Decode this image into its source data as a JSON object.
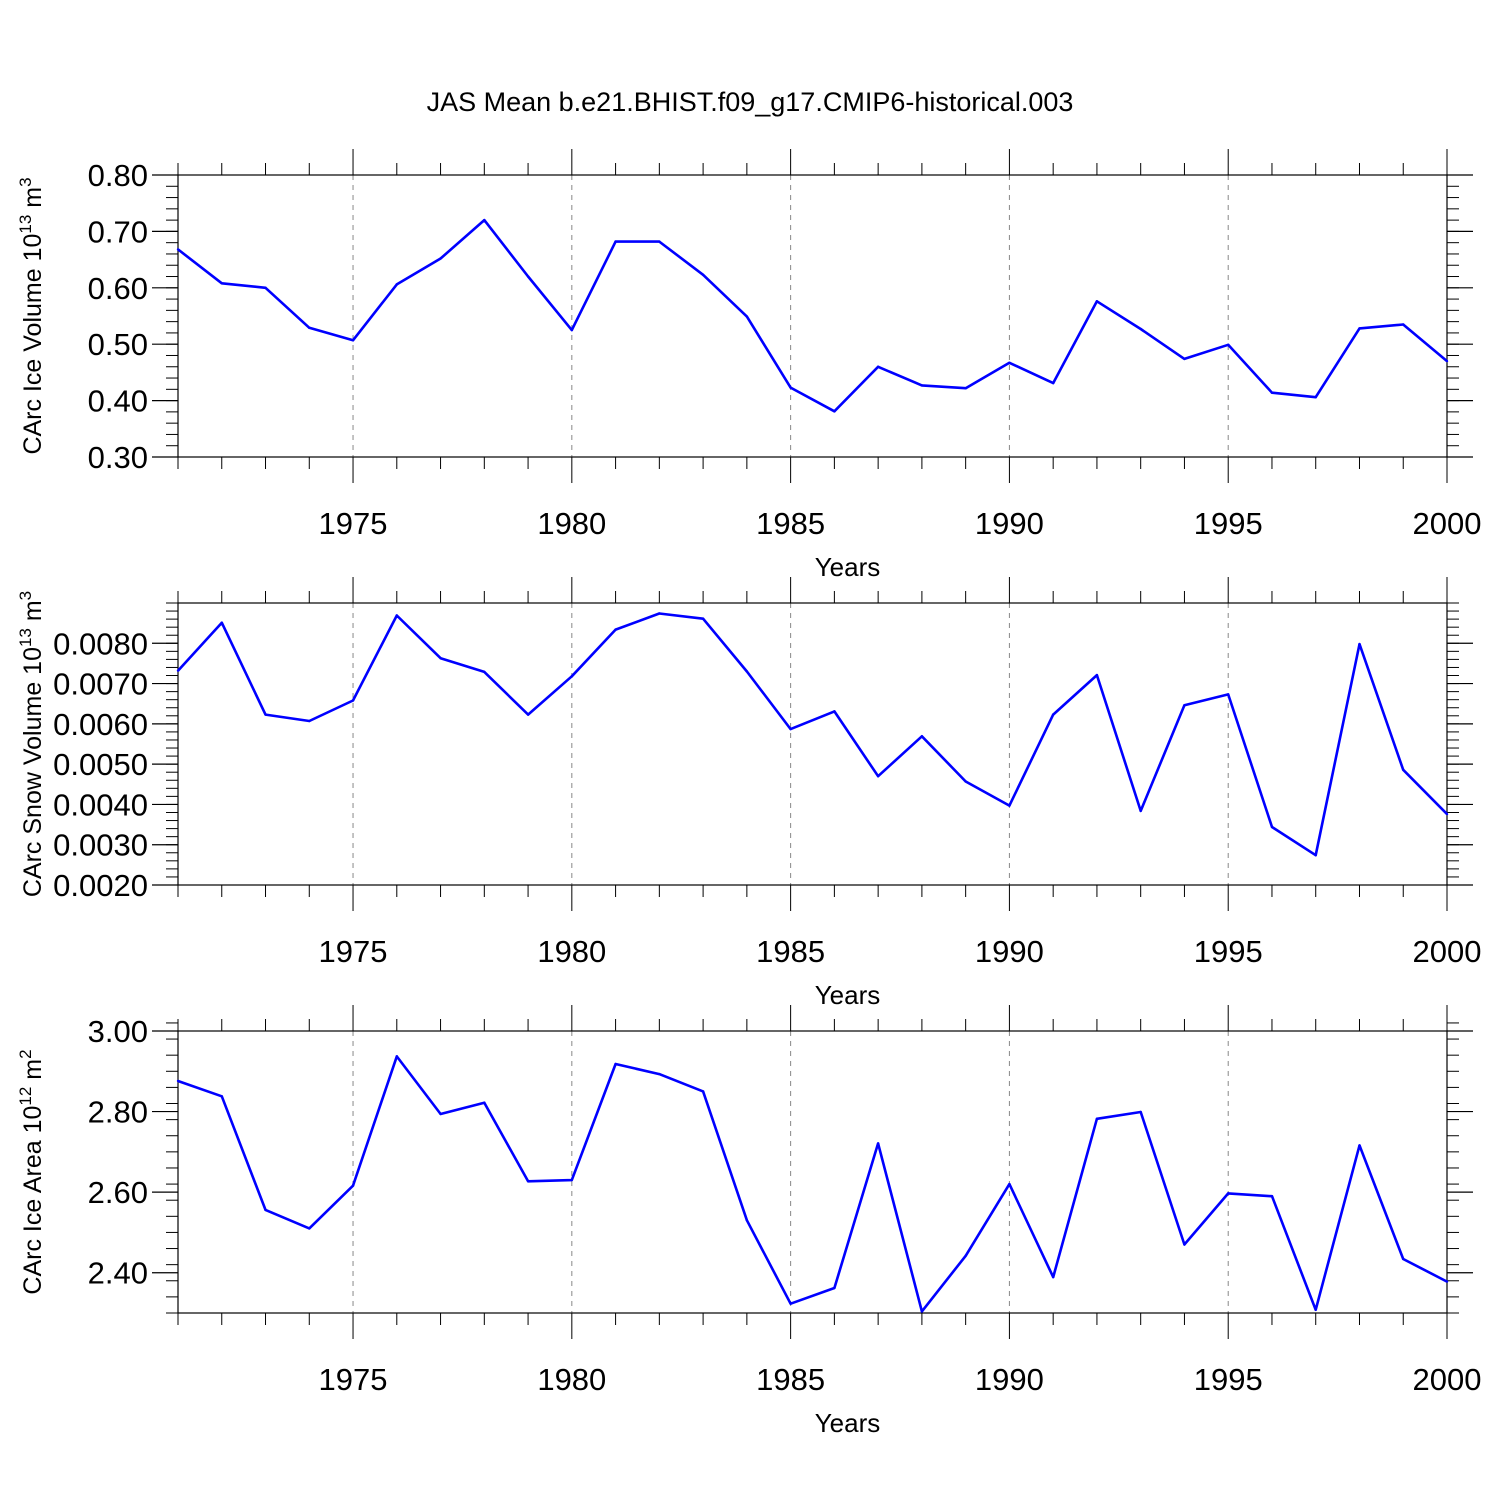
{
  "figure_title": "JAS Mean b.e21.BHIST.f09_g17.CMIP6-historical.003",
  "chart_data": [
    {
      "type": "line",
      "ylabel": "CArc Ice Volume 10",
      "ylabel_exp": "13",
      "ylabel_unit": " m",
      "ylabel_unit_exp": "3",
      "xlabel": "Years",
      "xlim": [
        1971,
        2000
      ],
      "ylim": [
        0.3,
        0.8
      ],
      "yticks": [
        0.3,
        0.4,
        0.5,
        0.6,
        0.7,
        0.8
      ],
      "ytick_labels": [
        "0.30",
        "0.40",
        "0.50",
        "0.60",
        "0.70",
        "0.80"
      ],
      "yminor_step": 0.02,
      "xticks": [
        1975,
        1980,
        1985,
        1990,
        1995,
        2000
      ],
      "xtick_labels": [
        "1975",
        "1980",
        "1985",
        "1990",
        "1995",
        "2000"
      ],
      "color": "#0000ff",
      "series": [
        {
          "name": "CArc Ice Volume",
          "x": [
            1971,
            1972,
            1973,
            1974,
            1975,
            1976,
            1977,
            1978,
            1979,
            1980,
            1981,
            1982,
            1983,
            1984,
            1985,
            1986,
            1987,
            1988,
            1989,
            1990,
            1991,
            1992,
            1993,
            1994,
            1995,
            1996,
            1997,
            1998,
            1999,
            2000
          ],
          "values": [
            0.668,
            0.608,
            0.6,
            0.529,
            0.507,
            0.606,
            0.652,
            0.72,
            0.62,
            0.525,
            0.682,
            0.682,
            0.623,
            0.549,
            0.423,
            0.381,
            0.46,
            0.427,
            0.422,
            0.467,
            0.431,
            0.576,
            0.527,
            0.474,
            0.499,
            0.414,
            0.406,
            0.528,
            0.535,
            0.47
          ]
        }
      ]
    },
    {
      "type": "line",
      "ylabel": "CArc Snow Volume 10",
      "ylabel_exp": "13",
      "ylabel_unit": " m",
      "ylabel_unit_exp": "3",
      "xlabel": "Years",
      "xlim": [
        1971,
        2000
      ],
      "ylim": [
        0.002,
        0.009
      ],
      "yticks": [
        0.002,
        0.003,
        0.004,
        0.005,
        0.006,
        0.007,
        0.008
      ],
      "ytick_labels": [
        "0.0020",
        "0.0030",
        "0.0040",
        "0.0050",
        "0.0060",
        "0.0070",
        "0.0080"
      ],
      "yminor_step": 0.0002,
      "xticks": [
        1975,
        1980,
        1985,
        1990,
        1995,
        2000
      ],
      "xtick_labels": [
        "1975",
        "1980",
        "1985",
        "1990",
        "1995",
        "2000"
      ],
      "color": "#0000ff",
      "series": [
        {
          "name": "CArc Snow Volume",
          "x": [
            1971,
            1972,
            1973,
            1974,
            1975,
            1976,
            1977,
            1978,
            1979,
            1980,
            1981,
            1982,
            1983,
            1984,
            1985,
            1986,
            1987,
            1988,
            1989,
            1990,
            1991,
            1992,
            1993,
            1994,
            1995,
            1996,
            1997,
            1998,
            1999,
            2000
          ],
          "values": [
            0.00732,
            0.00851,
            0.00623,
            0.00607,
            0.00658,
            0.00869,
            0.00763,
            0.00729,
            0.00623,
            0.00718,
            0.00834,
            0.00874,
            0.00861,
            0.0073,
            0.00587,
            0.00631,
            0.0047,
            0.00569,
            0.00457,
            0.00397,
            0.00623,
            0.00721,
            0.00384,
            0.00646,
            0.00673,
            0.00344,
            0.00274,
            0.00798,
            0.00486,
            0.00376
          ]
        }
      ]
    },
    {
      "type": "line",
      "ylabel": "CArc Ice Area 10",
      "ylabel_exp": "12",
      "ylabel_unit": " m",
      "ylabel_unit_exp": "2",
      "xlabel": "Years",
      "xlim": [
        1971,
        2000
      ],
      "ylim": [
        2.3,
        3.0
      ],
      "yticks": [
        2.4,
        2.6,
        2.8,
        3.0
      ],
      "ytick_labels": [
        "2.40",
        "2.60",
        "2.80",
        "3.00"
      ],
      "yminor_step": 0.04,
      "xticks": [
        1975,
        1980,
        1985,
        1990,
        1995,
        2000
      ],
      "xtick_labels": [
        "1975",
        "1980",
        "1985",
        "1990",
        "1995",
        "2000"
      ],
      "color": "#0000ff",
      "series": [
        {
          "name": "CArc Ice Area",
          "x": [
            1971,
            1972,
            1973,
            1974,
            1975,
            1976,
            1977,
            1978,
            1979,
            1980,
            1981,
            1982,
            1983,
            1984,
            1985,
            1986,
            1987,
            1988,
            1989,
            1990,
            1991,
            1992,
            1993,
            1994,
            1995,
            1996,
            1997,
            1998,
            1999,
            2000
          ],
          "values": [
            2.876,
            2.838,
            2.556,
            2.51,
            2.616,
            2.937,
            2.794,
            2.822,
            2.627,
            2.63,
            2.918,
            2.893,
            2.85,
            2.53,
            2.323,
            2.362,
            2.721,
            2.304,
            2.442,
            2.62,
            2.389,
            2.782,
            2.799,
            2.47,
            2.597,
            2.59,
            2.308,
            2.716,
            2.434,
            2.378
          ]
        }
      ]
    }
  ]
}
